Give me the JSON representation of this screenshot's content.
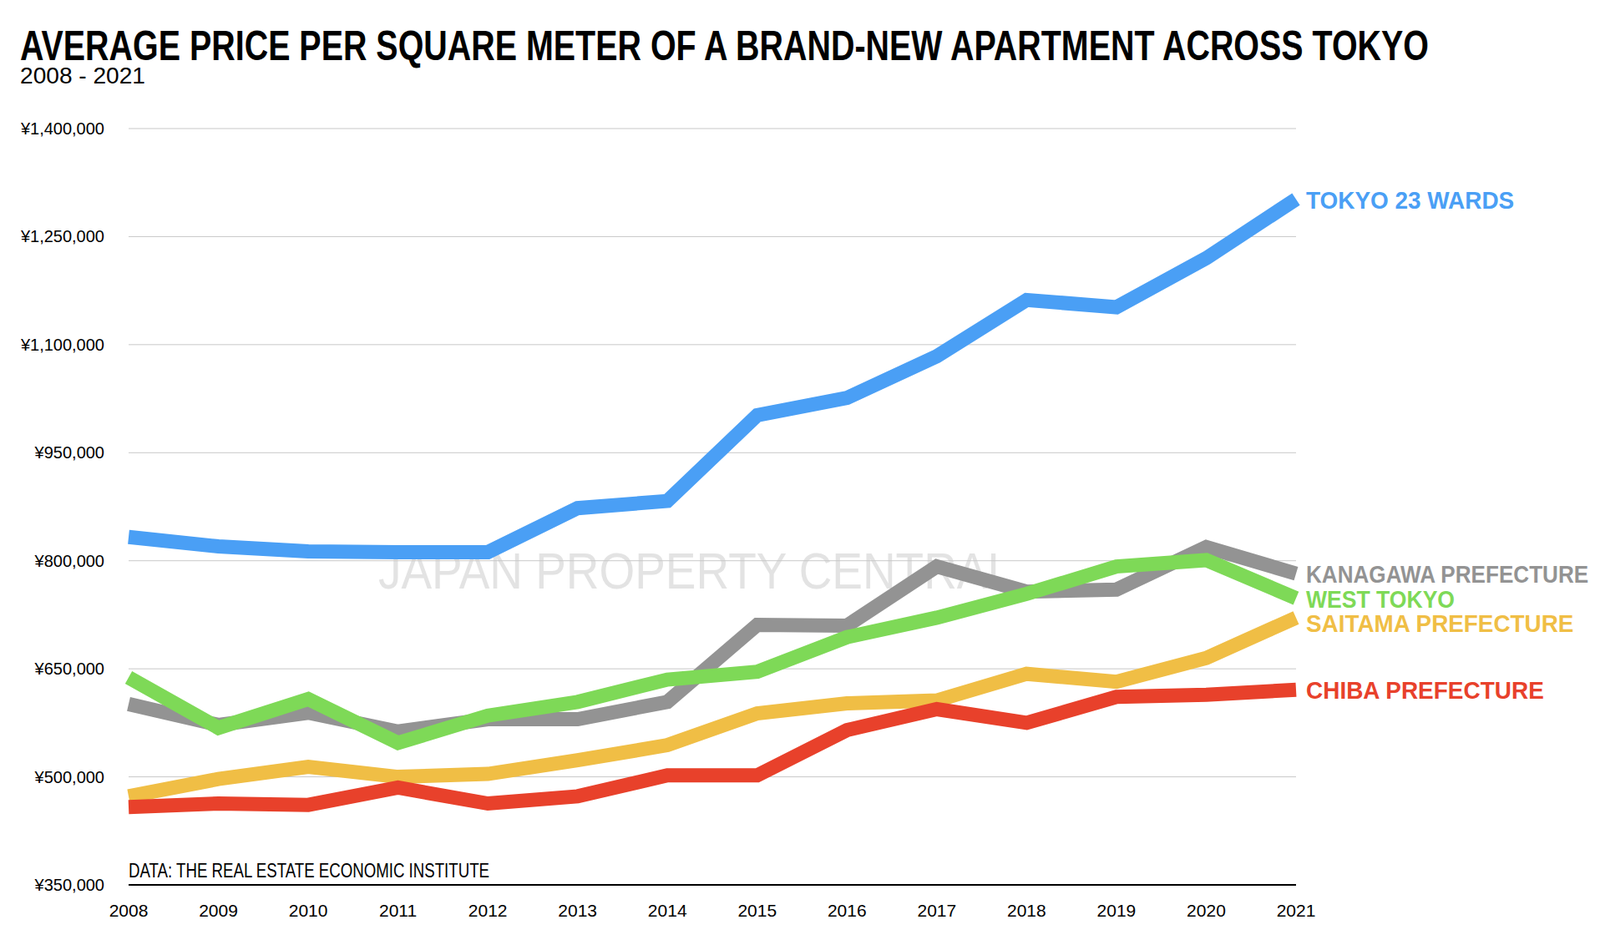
{
  "chart_data": {
    "type": "line",
    "title": "AVERAGE PRICE PER SQUARE METER OF A BRAND-NEW APARTMENT ACROSS TOKYO",
    "subtitle": "2008 - 2021",
    "source": "DATA: THE REAL ESTATE ECONOMIC INSTITUTE",
    "watermark": "JAPAN PROPERTY CENTRAL",
    "categories": [
      "2008",
      "2009",
      "2010",
      "2011",
      "2012",
      "2013",
      "2014",
      "2015",
      "2016",
      "2017",
      "2018",
      "2019",
      "2020",
      "2021"
    ],
    "series": [
      {
        "name": "TOKYO 23 WARDS",
        "color": "#4a9ff5",
        "values": [
          833000,
          820000,
          813000,
          812000,
          812000,
          873000,
          883000,
          1002000,
          1026000,
          1084000,
          1162000,
          1152000,
          1220000,
          1302000
        ]
      },
      {
        "name": "KANAGAWA PREFECTURE",
        "color": "#939393",
        "values": [
          601000,
          572000,
          589000,
          563000,
          580000,
          580000,
          604000,
          711000,
          710000,
          792000,
          757000,
          760000,
          819000,
          782000
        ]
      },
      {
        "name": "WEST TOKYO",
        "color": "#7ed957",
        "values": [
          638000,
          568000,
          608000,
          547000,
          585000,
          604000,
          635000,
          646000,
          694000,
          721000,
          754000,
          792000,
          801000,
          748000
        ]
      },
      {
        "name": "SAITAMA PREFECTURE",
        "color": "#f0be45",
        "values": [
          473000,
          497000,
          514000,
          500000,
          504000,
          523000,
          544000,
          588000,
          602000,
          606000,
          643000,
          632000,
          665000,
          721000
        ]
      },
      {
        "name": "CHIBA PREFECTURE",
        "color": "#e8412b",
        "values": [
          458000,
          463000,
          461000,
          485000,
          463000,
          473000,
          502000,
          502000,
          565000,
          594000,
          575000,
          611000,
          614000,
          621000
        ]
      }
    ],
    "ylim": [
      350000,
      1400000
    ],
    "yticks": [
      {
        "value": 350000,
        "label": "¥350,000"
      },
      {
        "value": 500000,
        "label": "¥500,000"
      },
      {
        "value": 650000,
        "label": "¥650,000"
      },
      {
        "value": 800000,
        "label": "¥800,000"
      },
      {
        "value": 950000,
        "label": "¥950,000"
      },
      {
        "value": 1100000,
        "label": "¥1,100,000"
      },
      {
        "value": 1250000,
        "label": "¥1,250,000"
      },
      {
        "value": 1400000,
        "label": "¥1,400,000"
      }
    ],
    "grid": true,
    "legend": "right"
  }
}
